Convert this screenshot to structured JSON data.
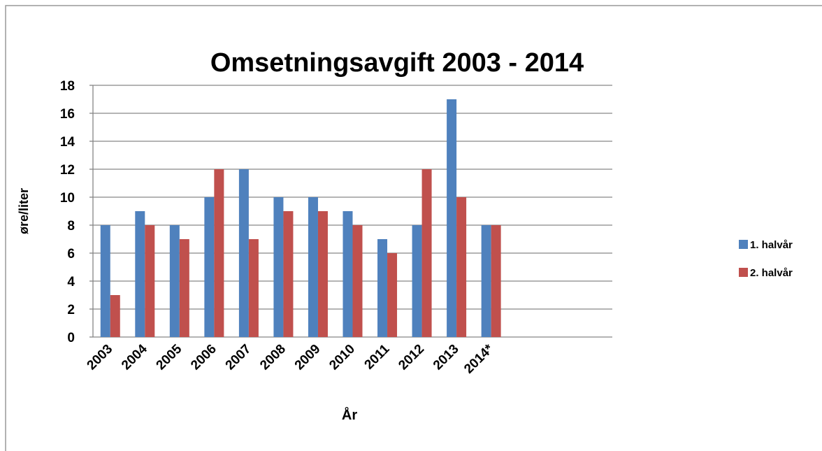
{
  "chart_data": {
    "type": "bar",
    "title": "Omsetningsavgift 2003 - 2014",
    "x_label": "År",
    "y_label": "øre/liter",
    "categories": [
      "2003",
      "2004",
      "2005",
      "2006",
      "2007",
      "2008",
      "2009",
      "2010",
      "2011",
      "2012",
      "2013",
      "2014*",
      null,
      null,
      null
    ],
    "series": [
      {
        "name": "1. halvår",
        "color": "#4f81bd",
        "values": [
          8,
          9,
          8,
          10,
          12,
          10,
          10,
          9,
          7,
          8,
          17,
          8,
          null,
          null,
          null
        ]
      },
      {
        "name": "2. halvår",
        "color": "#c0504d",
        "values": [
          3,
          8,
          7,
          12,
          7,
          9,
          9,
          8,
          6,
          12,
          10,
          8,
          null,
          null,
          null
        ]
      }
    ],
    "ylim": [
      0,
      18
    ],
    "yticks": [
      0,
      2,
      4,
      6,
      8,
      10,
      12,
      14,
      16,
      18
    ],
    "grid": true,
    "legend": "right"
  }
}
